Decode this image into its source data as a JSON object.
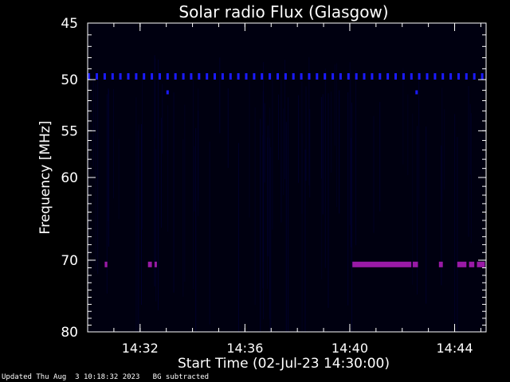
{
  "chart_data": {
    "type": "heatmap",
    "title": "Solar radio Flux (Glasgow)",
    "xlabel": "Start Time (02-Jul-23 14:30:00)",
    "ylabel": "Frequency [MHz]",
    "x_range_minutes": [
      0,
      15.2
    ],
    "x_ticks": [
      {
        "minute": 2,
        "label": "14:32"
      },
      {
        "minute": 6,
        "label": "14:36"
      },
      {
        "minute": 10,
        "label": "14:40"
      },
      {
        "minute": 14,
        "label": "14:44"
      }
    ],
    "y_range_mhz": [
      45,
      80
    ],
    "y_scale": "log",
    "y_inverted": true,
    "y_ticks": [
      {
        "value": 45,
        "label": "45"
      },
      {
        "value": 50,
        "label": "50"
      },
      {
        "value": 55,
        "label": "55"
      },
      {
        "value": 60,
        "label": "60"
      },
      {
        "value": 70,
        "label": "70"
      },
      {
        "value": 80,
        "label": "80"
      }
    ],
    "background_color": "#000010",
    "features": [
      {
        "name": "periodic-band-50mhz",
        "freq_mhz": 49.7,
        "minute_start": 0,
        "minute_end": 15.2,
        "period_minutes": 0.3,
        "color": "#1a1aff"
      },
      {
        "name": "burst-70.5mhz",
        "freq_mhz": 70.5,
        "segments": [
          [
            0.65,
            0.75
          ],
          [
            2.3,
            2.45
          ],
          [
            2.55,
            2.6
          ],
          [
            10.1,
            12.35
          ],
          [
            12.4,
            12.6
          ],
          [
            13.4,
            13.55
          ],
          [
            14.1,
            14.45
          ],
          [
            14.55,
            14.75
          ],
          [
            14.85,
            15.15
          ]
        ],
        "color": "#9a1aa6"
      },
      {
        "name": "isolated-dot",
        "freq_mhz": 51.2,
        "minute": 3.05,
        "color": "#1a1aff"
      },
      {
        "name": "isolated-dot",
        "freq_mhz": 51.2,
        "minute": 12.55,
        "color": "#1a1aff"
      }
    ]
  },
  "footer": {
    "updated": "Updated Thu Aug  3 10:18:32 2023",
    "note": "BG subtracted"
  }
}
